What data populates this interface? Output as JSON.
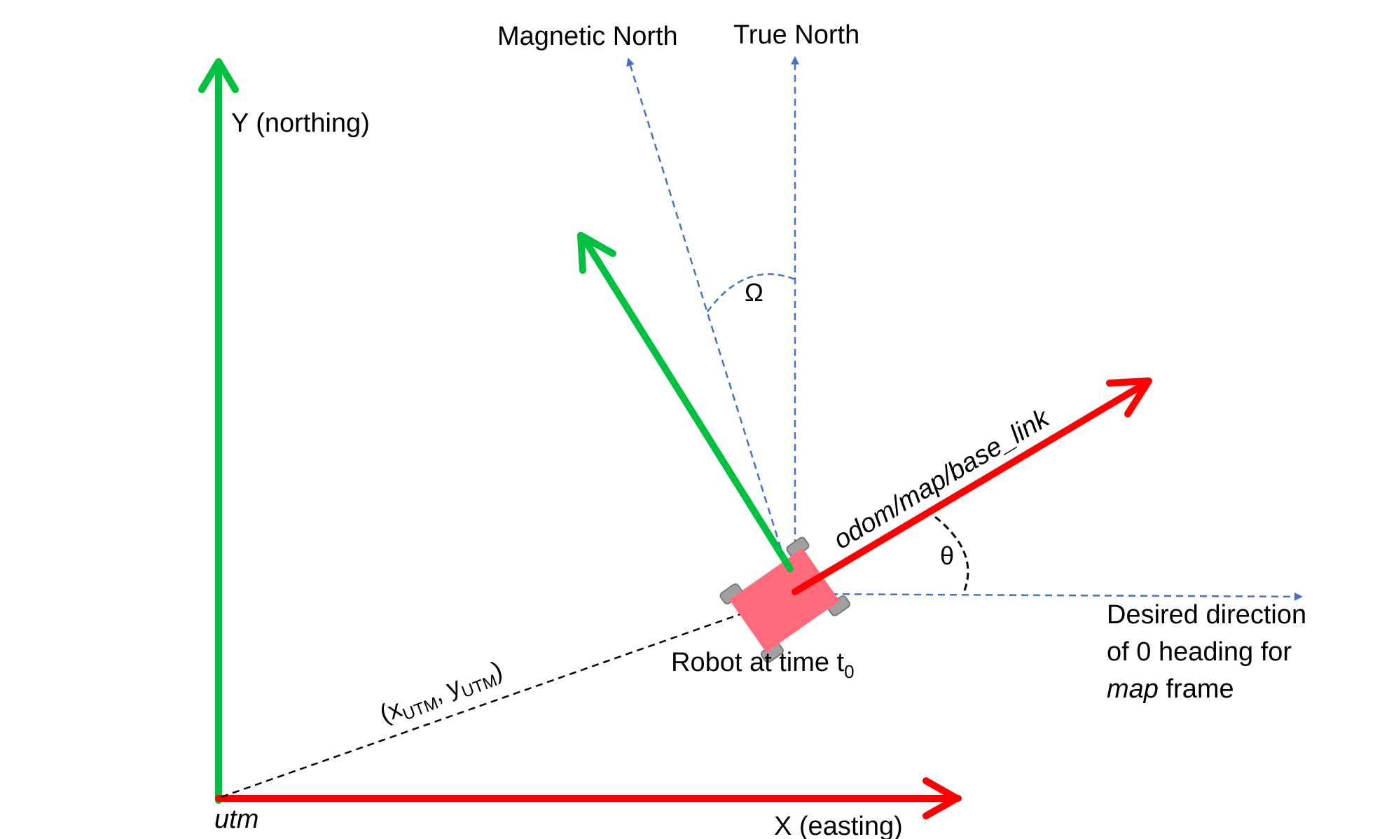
{
  "labels": {
    "y_axis": "Y (northing)",
    "x_axis": "X (easting)",
    "origin": "utm",
    "magnetic_north": "Magnetic North",
    "true_north": "True North",
    "omega": "Ω",
    "theta": "θ",
    "frame": "odom/map/base_link",
    "robot_prefix": "Robot at time t",
    "robot_sub": "0",
    "coord_open": "(x",
    "coord_x_sub": "UTM",
    "coord_mid": ", y",
    "coord_y_sub": "UTM",
    "coord_close": ")",
    "desired_line1": "Desired direction",
    "desired_line2": "of 0 heading for",
    "desired_line3_italic": "map",
    "desired_line3_rest": " frame"
  },
  "colors": {
    "green": "#00c040",
    "red": "#ff0000",
    "blue_dashed": "#4472c4",
    "black": "#000000",
    "robot_body": "#ff6b7a",
    "wheel": "#a0a0a0"
  }
}
